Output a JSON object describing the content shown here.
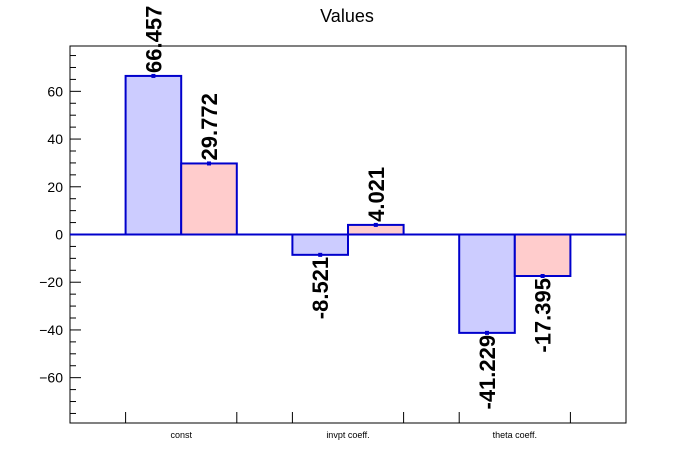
{
  "chart_data": {
    "type": "bar",
    "title": "Values",
    "categories": [
      "const",
      "invpt coeff.",
      "theta coeff."
    ],
    "series": [
      {
        "values": [
          66.457,
          -8.521,
          -41.229
        ],
        "fill": "#ccccff",
        "stroke": "#0000cc"
      },
      {
        "values": [
          29.772,
          4.021,
          -17.395
        ],
        "fill": "#ffcccc",
        "stroke": "#0000cc"
      }
    ],
    "data_labels": [
      [
        "66.457",
        "-8.521",
        "-41.229"
      ],
      [
        "29.772",
        "4.021",
        "-17.395"
      ]
    ],
    "ylim": [
      -79,
      79
    ],
    "yticks": [
      -60,
      -40,
      -20,
      0,
      20,
      40,
      60
    ],
    "ytick_labels": [
      "−60",
      "−40",
      "−20",
      "0",
      "20",
      "40",
      "60"
    ],
    "xlabel": "",
    "ylabel": "",
    "grid": false,
    "legend": "none",
    "zero_line_color": "#0000cc"
  }
}
